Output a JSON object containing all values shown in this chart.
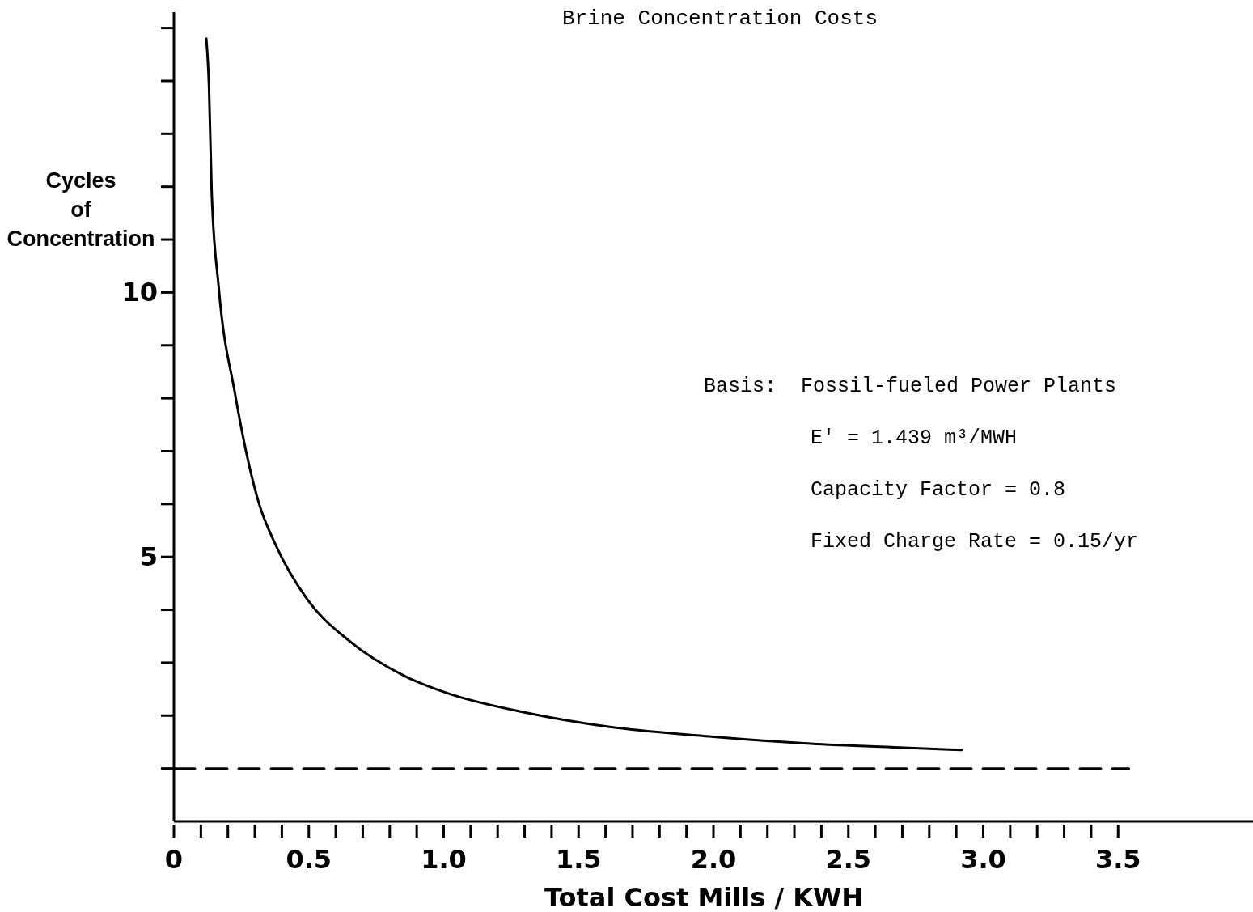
{
  "chart_data": {
    "type": "line",
    "title": "Brine Concentration Costs",
    "xlabel": "Total Cost Mills / KWH",
    "ylabel": "Cycles of Concentration",
    "xlim": [
      0,
      4.0
    ],
    "ylim": [
      0,
      15.3
    ],
    "xticks": [
      0,
      {
        "value": 0.1,
        "label": null
      },
      {
        "value": 0.2,
        "label": null
      },
      {
        "value": 0.3,
        "label": null
      },
      {
        "value": 0.4,
        "label": null
      },
      0.5,
      {
        "value": 0.6,
        "label": null
      },
      {
        "value": 0.7,
        "label": null
      },
      {
        "value": 0.8,
        "label": null
      },
      {
        "value": 0.9,
        "label": null
      },
      {
        "value": 1,
        "label": "1.0"
      },
      {
        "value": 1.1,
        "label": null
      },
      {
        "value": 1.2,
        "label": null
      },
      {
        "value": 1.3,
        "label": null
      },
      {
        "value": 1.4,
        "label": null
      },
      1.5,
      {
        "value": 1.6,
        "label": null
      },
      {
        "value": 1.7,
        "label": null
      },
      {
        "value": 1.8,
        "label": null
      },
      {
        "value": 1.9,
        "label": null
      },
      {
        "value": 2,
        "label": "2.0"
      },
      {
        "value": 2.1,
        "label": null
      },
      {
        "value": 2.2,
        "label": null
      },
      {
        "value": 2.3,
        "label": null
      },
      {
        "value": 2.4,
        "label": null
      },
      2.5,
      {
        "value": 2.6,
        "label": null
      },
      {
        "value": 2.7,
        "label": null
      },
      {
        "value": 2.8,
        "label": null
      },
      {
        "value": 2.9,
        "label": null
      },
      {
        "value": 3,
        "label": "3.0"
      },
      {
        "value": 3.1,
        "label": null
      },
      {
        "value": 3.2,
        "label": null
      },
      {
        "value": 3.3,
        "label": null
      },
      {
        "value": 3.4,
        "label": null
      },
      3.5
    ],
    "yticks": [
      {
        "value": 1,
        "label": null
      },
      {
        "value": 2,
        "label": null
      },
      {
        "value": 3,
        "label": null
      },
      {
        "value": 4,
        "label": null
      },
      5,
      {
        "value": 6,
        "label": null
      },
      {
        "value": 7,
        "label": null
      },
      {
        "value": 8,
        "label": null
      },
      {
        "value": 9,
        "label": null
      },
      10,
      {
        "value": 11,
        "label": null
      },
      {
        "value": 12,
        "label": null
      },
      {
        "value": 13,
        "label": null
      },
      {
        "value": 14,
        "label": null
      },
      {
        "value": 15,
        "label": null
      }
    ],
    "marker": "none",
    "grid": false,
    "series": [
      {
        "color": "#000000",
        "line_style": "solid",
        "x": [
          0.12,
          0.13,
          0.14,
          0.166,
          0.226,
          0.316,
          0.376,
          0.497,
          0.648,
          0.858,
          1.01,
          1.31,
          1.61,
          2.0,
          2.36,
          2.67,
          2.92
        ],
        "values": [
          14.8,
          13.9,
          11.9,
          10.1,
          8.1,
          6.0,
          5.24,
          4.18,
          3.42,
          2.74,
          2.43,
          2.05,
          1.79,
          1.6,
          1.47,
          1.4,
          1.35
        ]
      },
      {
        "color": "#000000",
        "line_style": "dashed",
        "x": [
          0,
          3.54
        ],
        "values": [
          1,
          1
        ]
      }
    ],
    "annotations": [
      "Basis:  Fossil-fueled Power Plants",
      "E' = 1.439 m³/MWH",
      "Capacity Factor = 0.8",
      "Fixed Charge Rate = 0.15/yr"
    ]
  }
}
